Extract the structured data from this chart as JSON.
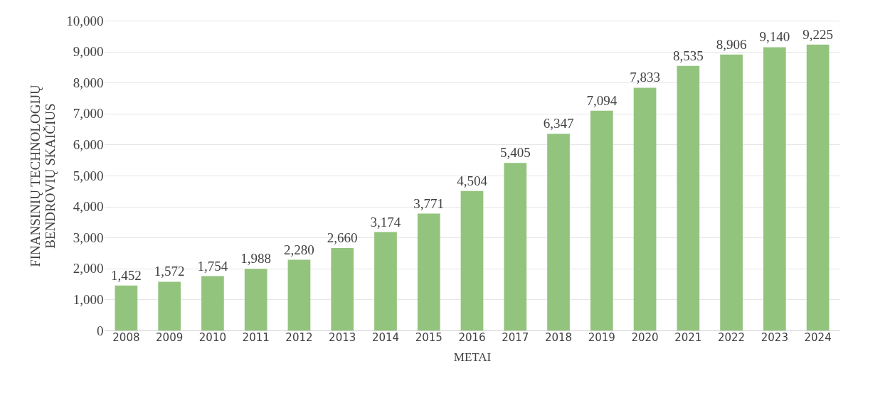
{
  "chart_data": {
    "type": "bar",
    "xlabel": "METAI",
    "ylabel": "FINANSINIŲ TECHNOLOGIJŲ\nBENDROVIŲ SKAIČIUS",
    "categories": [
      "2008",
      "2009",
      "2010",
      "2011",
      "2012",
      "2013",
      "2014",
      "2015",
      "2016",
      "2017",
      "2018",
      "2019",
      "2020",
      "2021",
      "2022",
      "2023",
      "2024"
    ],
    "values": [
      1452,
      1572,
      1754,
      1988,
      2280,
      2660,
      3174,
      3771,
      4504,
      5405,
      6347,
      7094,
      7833,
      8535,
      8906,
      9140,
      9225
    ],
    "color": "#93c47d",
    "ylim": [
      0,
      10000
    ],
    "yticks": [
      0,
      {
        "value": 1000,
        "label": "1,000"
      },
      {
        "value": 2000,
        "label": "2,000"
      },
      {
        "value": 3000,
        "label": "3,000"
      },
      {
        "value": 4000,
        "label": "4,000"
      },
      {
        "value": 5000,
        "label": "5,000"
      },
      {
        "value": 6000,
        "label": "6,000"
      },
      {
        "value": 7000,
        "label": "7,000"
      },
      {
        "value": 8000,
        "label": "8,000"
      },
      {
        "value": 9000,
        "label": "9,000"
      },
      {
        "value": 10000,
        "label": "10,000"
      }
    ],
    "value_labels": [
      "1,452",
      "1,572",
      "1,754",
      "1,988",
      "2,280",
      "2,660",
      "3,174",
      "3,771",
      "4,504",
      "5,405",
      "6,347",
      "7,094",
      "7,833",
      "8,535",
      "8,906",
      "9,140",
      "9,225"
    ],
    "grid": "y"
  }
}
